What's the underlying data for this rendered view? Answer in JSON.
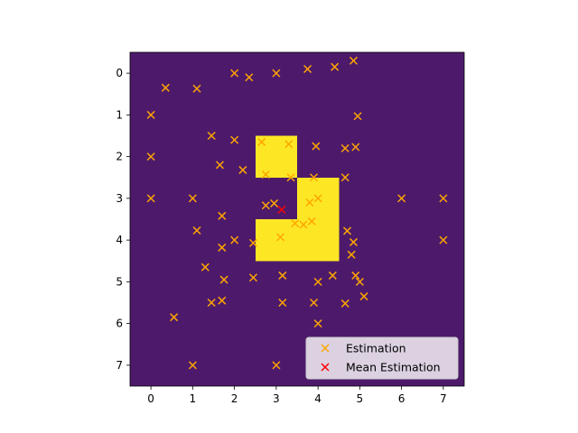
{
  "chart_data": {
    "type": "heatmap",
    "title": "",
    "xlabel": "",
    "ylabel": "",
    "x_ticks": [
      "0",
      "1",
      "2",
      "3",
      "4",
      "5",
      "6",
      "7"
    ],
    "y_ticks": [
      "0",
      "1",
      "2",
      "3",
      "4",
      "5",
      "6",
      "7"
    ],
    "xlim": [
      -0.5,
      7.5
    ],
    "ylim": [
      7.5,
      -0.5
    ],
    "grid": false,
    "legend_position": "lower-right",
    "colors": {
      "background_cell": "#4d1a6b",
      "highlight_cell": "#fde725",
      "estimation_marker": "#ffa500",
      "mean_marker": "#ff0000"
    },
    "highlighted_cells": [
      {
        "row": 2,
        "col": 3
      },
      {
        "row": 3,
        "col": 4
      },
      {
        "row": 4,
        "col": 3
      },
      {
        "row": 4,
        "col": 4
      }
    ],
    "series": [
      {
        "name": "Estimation",
        "marker": "x",
        "points": [
          [
            2.0,
            0.0
          ],
          [
            2.35,
            0.1
          ],
          [
            3.0,
            0.0
          ],
          [
            3.75,
            -0.1
          ],
          [
            4.4,
            -0.15
          ],
          [
            4.85,
            -0.3
          ],
          [
            0.35,
            0.35
          ],
          [
            1.1,
            0.37
          ],
          [
            0.0,
            1.0
          ],
          [
            4.95,
            1.03
          ],
          [
            1.45,
            1.5
          ],
          [
            2.0,
            1.6
          ],
          [
            2.65,
            1.65
          ],
          [
            3.3,
            1.7
          ],
          [
            3.95,
            1.75
          ],
          [
            4.65,
            1.8
          ],
          [
            4.9,
            1.77
          ],
          [
            0.0,
            2.0
          ],
          [
            1.65,
            2.2
          ],
          [
            2.2,
            2.32
          ],
          [
            2.75,
            2.43
          ],
          [
            3.35,
            2.5
          ],
          [
            3.9,
            2.5
          ],
          [
            4.65,
            2.5
          ],
          [
            0.0,
            3.0
          ],
          [
            1.0,
            3.0
          ],
          [
            6.0,
            3.0
          ],
          [
            7.0,
            3.0
          ],
          [
            2.75,
            3.17
          ],
          [
            2.95,
            3.12
          ],
          [
            3.8,
            3.1
          ],
          [
            4.0,
            3.0
          ],
          [
            1.7,
            3.42
          ],
          [
            3.45,
            3.6
          ],
          [
            3.65,
            3.63
          ],
          [
            3.85,
            3.55
          ],
          [
            1.1,
            3.77
          ],
          [
            4.7,
            3.78
          ],
          [
            2.0,
            4.0
          ],
          [
            2.45,
            4.07
          ],
          [
            3.1,
            3.93
          ],
          [
            4.85,
            4.05
          ],
          [
            7.0,
            4.0
          ],
          [
            1.7,
            4.18
          ],
          [
            4.8,
            4.35
          ],
          [
            1.3,
            4.65
          ],
          [
            2.45,
            4.9
          ],
          [
            3.15,
            4.85
          ],
          [
            4.35,
            4.85
          ],
          [
            4.9,
            4.85
          ],
          [
            1.75,
            4.95
          ],
          [
            4.0,
            5.0
          ],
          [
            5.0,
            5.0
          ],
          [
            5.1,
            5.35
          ],
          [
            1.45,
            5.5
          ],
          [
            1.7,
            5.45
          ],
          [
            3.15,
            5.5
          ],
          [
            3.9,
            5.5
          ],
          [
            4.65,
            5.52
          ],
          [
            0.55,
            5.85
          ],
          [
            4.0,
            6.0
          ],
          [
            1.0,
            7.0
          ],
          [
            3.0,
            7.0
          ]
        ]
      },
      {
        "name": "Mean Estimation",
        "marker": "x",
        "points": [
          [
            3.13,
            3.27
          ]
        ]
      }
    ]
  }
}
